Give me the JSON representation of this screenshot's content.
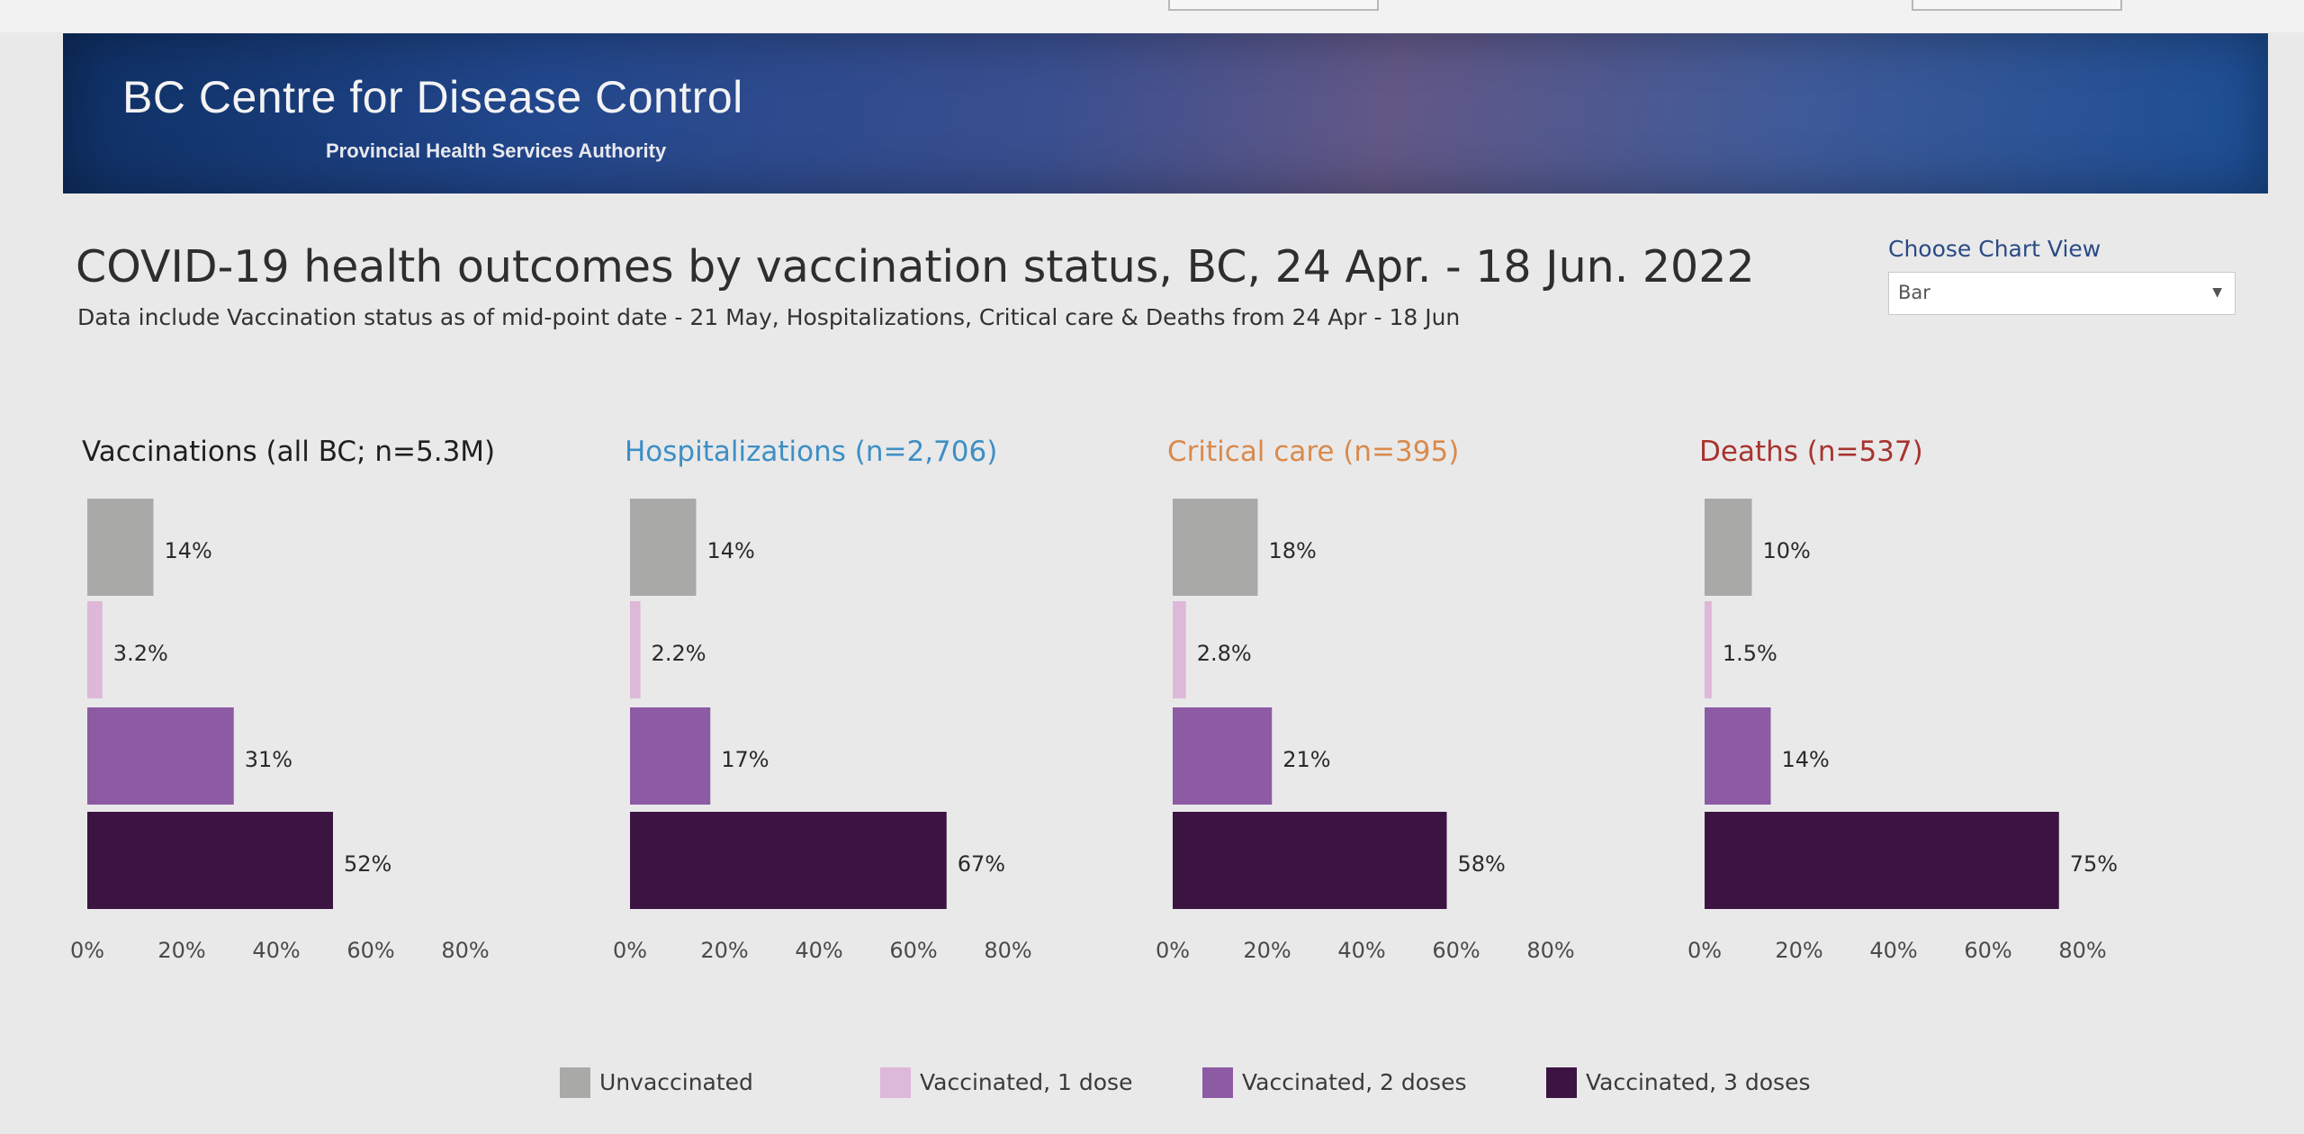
{
  "header": {
    "org_name": "BC Centre for Disease Control",
    "org_sub": "Provincial Health Services Authority"
  },
  "title": "COVID-19 health outcomes by vaccination status, BC,  24 Apr. - 18 Jun. 2022",
  "subtitle": "Data include Vaccination status as of mid-point date - 21 May, Hospitalizations, Critical care & Deaths from 24 Apr - 18 Jun",
  "chart_view": {
    "label": "Choose Chart View",
    "value": "Bar",
    "arrow_icon": "chevron-down-icon"
  },
  "colors": {
    "Unvaccinated": "#a9aaa8",
    "Vaccinated, 1 dose": "#ddb8d8",
    "Vaccinated, 2 doses": "#8d5ba3",
    "Vaccinated, 3 doses": "#3c1442",
    "vaccinations_title": "#1f1f1f",
    "hospitalizations_title": "#3d8fc4",
    "critical_title": "#d98a4c",
    "deaths_title": "#a8332e"
  },
  "legend": [
    {
      "label": "Unvaccinated",
      "color": "#a9aaa8"
    },
    {
      "label": "Vaccinated, 1 dose",
      "color": "#ddb8d8"
    },
    {
      "label": "Vaccinated, 2 doses",
      "color": "#8d5ba3"
    },
    {
      "label": "Vaccinated, 3 doses",
      "color": "#3c1442"
    }
  ],
  "chart_data": [
    {
      "type": "bar",
      "orientation": "horizontal",
      "title": "Vaccinations (all BC; n=5.3M)",
      "categories": [
        "Unvaccinated",
        "Vaccinated, 1 dose",
        "Vaccinated, 2 doses",
        "Vaccinated, 3 doses"
      ],
      "values": [
        14,
        3.2,
        31,
        52
      ],
      "data_labels": [
        "14%",
        "3.2%",
        "31%",
        "52%"
      ],
      "xlim": [
        0,
        80
      ],
      "x_ticks": [
        "0%",
        "20%",
        "40%",
        "60%",
        "80%"
      ]
    },
    {
      "type": "bar",
      "orientation": "horizontal",
      "title": "Hospitalizations (n=2,706)",
      "categories": [
        "Unvaccinated",
        "Vaccinated, 1 dose",
        "Vaccinated, 2 doses",
        "Vaccinated, 3 doses"
      ],
      "values": [
        14,
        2.2,
        17,
        67
      ],
      "data_labels": [
        "14%",
        "2.2%",
        "17%",
        "67%"
      ],
      "xlim": [
        0,
        80
      ],
      "x_ticks": [
        "0%",
        "20%",
        "40%",
        "60%",
        "80%"
      ]
    },
    {
      "type": "bar",
      "orientation": "horizontal",
      "title": "Critical care (n=395)",
      "categories": [
        "Unvaccinated",
        "Vaccinated, 1 dose",
        "Vaccinated, 2 doses",
        "Vaccinated, 3 doses"
      ],
      "values": [
        18,
        2.8,
        21,
        58
      ],
      "data_labels": [
        "18%",
        "2.8%",
        "21%",
        "58%"
      ],
      "xlim": [
        0,
        80
      ],
      "x_ticks": [
        "0%",
        "20%",
        "40%",
        "60%",
        "80%"
      ]
    },
    {
      "type": "bar",
      "orientation": "horizontal",
      "title": "Deaths (n=537)",
      "categories": [
        "Unvaccinated",
        "Vaccinated, 1 dose",
        "Vaccinated, 2 doses",
        "Vaccinated, 3 doses"
      ],
      "values": [
        10,
        1.5,
        14,
        75
      ],
      "data_labels": [
        "10%",
        "1.5%",
        "14%",
        "75%"
      ],
      "xlim": [
        0,
        80
      ],
      "x_ticks": [
        "0%",
        "20%",
        "40%",
        "60%",
        "80%"
      ]
    }
  ]
}
